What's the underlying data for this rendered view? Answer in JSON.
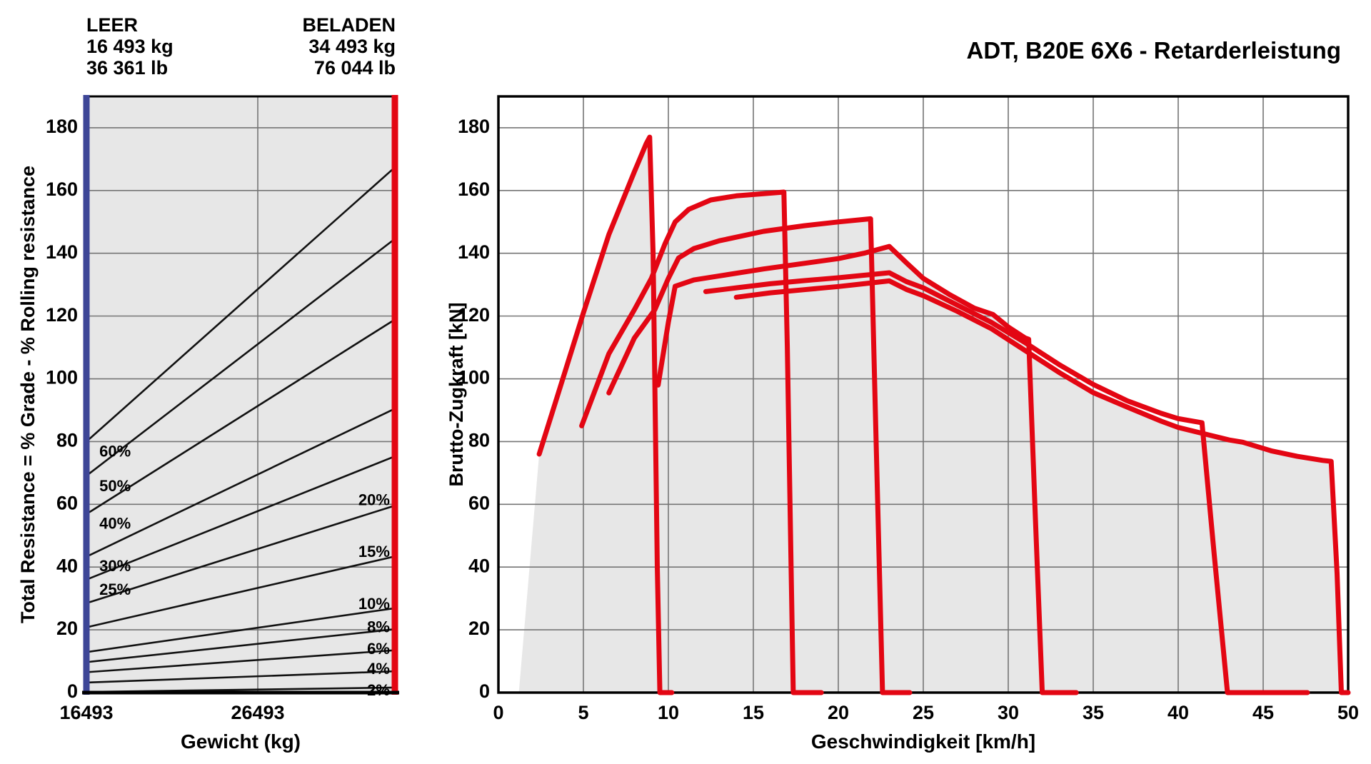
{
  "header_left": {
    "title": "LEER",
    "kg": "16 493 kg",
    "lb": "36 361 lb"
  },
  "header_right": {
    "title": "BELADEN",
    "kg": "34 493 kg",
    "lb": "76 044 lb"
  },
  "colors": {
    "red": "#e30613",
    "blue": "#3d4697",
    "fill": "#e7e7e7",
    "grid": "#757575",
    "line": "#111111"
  },
  "chart_data": [
    {
      "type": "line",
      "name": "grade-weight-nomograph",
      "xlabel": "Gewicht (kg)",
      "ylabel": "Total Resistance = % Grade - % Rolling resistance",
      "xlim": [
        16493,
        34493
      ],
      "ylim": [
        0,
        190
      ],
      "grid": true,
      "xticks": [
        {
          "value": 16493,
          "label": "16493"
        },
        {
          "value": 26493,
          "label": "26493"
        }
      ],
      "yticks": [
        {
          "value": 0,
          "label": "0"
        },
        {
          "value": 20,
          "label": "20"
        },
        {
          "value": 40,
          "label": "40"
        },
        {
          "value": 60,
          "label": "60"
        },
        {
          "value": 80,
          "label": "80"
        },
        {
          "value": 100,
          "label": "100"
        },
        {
          "value": 120,
          "label": "120"
        },
        {
          "value": 140,
          "label": "140"
        },
        {
          "value": 160,
          "label": "160"
        },
        {
          "value": 180,
          "label": "180"
        }
      ],
      "series": [
        {
          "name": "grade-60",
          "x": [
            16493,
            34493
          ],
          "y": [
            80.0,
            167.4
          ],
          "label": {
            "text": "60%",
            "x": 17250,
            "y": 76.5,
            "anchor": "start"
          }
        },
        {
          "name": "grade-50",
          "x": [
            16493,
            34493
          ],
          "y": [
            69.1,
            144.6
          ],
          "label": {
            "text": "50%",
            "x": 17250,
            "y": 65.5,
            "anchor": "start"
          }
        },
        {
          "name": "grade-40",
          "x": [
            16493,
            34493
          ],
          "y": [
            56.9,
            118.9
          ],
          "label": {
            "text": "40%",
            "x": 17250,
            "y": 53.5,
            "anchor": "start"
          }
        },
        {
          "name": "grade-30",
          "x": [
            16493,
            34493
          ],
          "y": [
            43.3,
            90.5
          ],
          "label": {
            "text": "30%",
            "x": 17250,
            "y": 40.0,
            "anchor": "start"
          }
        },
        {
          "name": "grade-25",
          "x": [
            16493,
            34493
          ],
          "y": [
            36.0,
            75.3
          ],
          "label": {
            "text": "25%",
            "x": 17250,
            "y": 32.5,
            "anchor": "start"
          }
        },
        {
          "name": "grade-20",
          "x": [
            16493,
            34493
          ],
          "y": [
            28.5,
            59.6
          ],
          "label": {
            "text": "20%",
            "x": 34200,
            "y": 61.0,
            "anchor": "end"
          }
        },
        {
          "name": "grade-15",
          "x": [
            16493,
            34493
          ],
          "y": [
            20.8,
            43.4
          ],
          "label": {
            "text": "15%",
            "x": 34200,
            "y": 44.5,
            "anchor": "end"
          }
        },
        {
          "name": "grade-10",
          "x": [
            16493,
            34493
          ],
          "y": [
            12.9,
            26.9
          ],
          "label": {
            "text": "10%",
            "x": 34200,
            "y": 28.0,
            "anchor": "end"
          }
        },
        {
          "name": "grade-8",
          "x": [
            16493,
            34493
          ],
          "y": [
            9.7,
            20.2
          ],
          "label": {
            "text": "8%",
            "x": 34200,
            "y": 20.5,
            "anchor": "end"
          }
        },
        {
          "name": "grade-6",
          "x": [
            16493,
            34493
          ],
          "y": [
            6.5,
            13.5
          ],
          "label": {
            "text": "6%",
            "x": 34200,
            "y": 13.6,
            "anchor": "end"
          }
        },
        {
          "name": "grade-4",
          "x": [
            16493,
            34493
          ],
          "y": [
            3.2,
            6.8
          ],
          "label": {
            "text": "4%",
            "x": 34200,
            "y": 7.2,
            "anchor": "end"
          }
        },
        {
          "name": "grade-2",
          "x": [
            16493,
            34493
          ],
          "y": [
            0.2,
            1.6
          ],
          "label": {
            "text": "2%",
            "x": 34200,
            "y": 0.4,
            "anchor": "end"
          }
        }
      ]
    },
    {
      "type": "line",
      "name": "retarder-performance",
      "title": "ADT, B20E 6X6 - Retarderleistung",
      "xlabel": "Geschwindigkeit [km/h]",
      "ylabel": "Brutto-Zugkraft [kN]",
      "xlim": [
        0,
        50
      ],
      "ylim": [
        0,
        190
      ],
      "grid": true,
      "xticks": [
        {
          "value": 0,
          "label": "0"
        },
        {
          "value": 5,
          "label": "5"
        },
        {
          "value": 10,
          "label": "10"
        },
        {
          "value": 15,
          "label": "15"
        },
        {
          "value": 20,
          "label": "20"
        },
        {
          "value": 25,
          "label": "25"
        },
        {
          "value": 30,
          "label": "30"
        },
        {
          "value": 35,
          "label": "35"
        },
        {
          "value": 40,
          "label": "40"
        },
        {
          "value": 45,
          "label": "45"
        },
        {
          "value": 50,
          "label": "50"
        }
      ],
      "yticks": [
        {
          "value": 0,
          "label": "0"
        },
        {
          "value": 20,
          "label": "20"
        },
        {
          "value": 40,
          "label": "40"
        },
        {
          "value": 60,
          "label": "60"
        },
        {
          "value": 80,
          "label": "80"
        },
        {
          "value": 100,
          "label": "100"
        },
        {
          "value": 120,
          "label": "120"
        },
        {
          "value": 140,
          "label": "140"
        },
        {
          "value": 160,
          "label": "160"
        },
        {
          "value": 180,
          "label": "180"
        }
      ],
      "series": [
        {
          "name": "gear-1",
          "points": [
            [
              2.4,
              76
            ],
            [
              3.5,
              95
            ],
            [
              5,
              121
            ],
            [
              6.5,
              146
            ],
            [
              8,
              166
            ],
            [
              8.7,
              175
            ],
            [
              8.9,
              177
            ],
            [
              9.1,
              140
            ],
            [
              9.35,
              40
            ],
            [
              9.5,
              0
            ],
            [
              10.2,
              0
            ]
          ]
        },
        {
          "name": "gear-2",
          "points": [
            [
              4.9,
              85
            ],
            [
              6.5,
              108
            ],
            [
              8,
              122
            ],
            [
              9,
              132
            ],
            [
              9.8,
              143
            ],
            [
              10.4,
              150
            ],
            [
              11.2,
              154
            ],
            [
              12.5,
              157
            ],
            [
              14,
              158.3
            ],
            [
              16.8,
              159.5
            ],
            [
              17.0,
              110
            ],
            [
              17.35,
              0
            ],
            [
              19.0,
              0
            ]
          ]
        },
        {
          "name": "gear-3",
          "points": [
            [
              6.5,
              95.5
            ],
            [
              8,
              113
            ],
            [
              9.2,
              122
            ],
            [
              10,
              132
            ],
            [
              10.6,
              138.5
            ],
            [
              11.5,
              141.5
            ],
            [
              13,
              144
            ],
            [
              15.6,
              147
            ],
            [
              18,
              148.8
            ],
            [
              20,
              150
            ],
            [
              21.9,
              151
            ],
            [
              22.2,
              85
            ],
            [
              22.6,
              0
            ],
            [
              24.2,
              0
            ]
          ]
        },
        {
          "name": "gear-4",
          "points": [
            [
              9.4,
              98
            ],
            [
              10,
              118
            ],
            [
              10.4,
              129.5
            ],
            [
              11.5,
              131.5
            ],
            [
              13,
              132.8
            ],
            [
              15.6,
              135
            ],
            [
              18,
              136.8
            ],
            [
              20,
              138.3
            ],
            [
              21.5,
              140
            ],
            [
              23,
              142.2
            ],
            [
              24,
              137
            ],
            [
              25,
              132
            ],
            [
              26.5,
              127
            ],
            [
              28,
              122.5
            ],
            [
              29.1,
              120.5
            ],
            [
              30,
              116.5
            ],
            [
              31,
              113
            ],
            [
              31.2,
              112.6
            ],
            [
              31.6,
              55
            ],
            [
              32,
              0
            ],
            [
              34,
              0
            ]
          ]
        },
        {
          "name": "gear-5",
          "points": [
            [
              12.2,
              127.8
            ],
            [
              14,
              129
            ],
            [
              16,
              130.3
            ],
            [
              18,
              131.3
            ],
            [
              20,
              132.2
            ],
            [
              21.5,
              133
            ],
            [
              23,
              133.8
            ],
            [
              24,
              131
            ],
            [
              25,
              129
            ],
            [
              27,
              123.5
            ],
            [
              29,
              118
            ],
            [
              31,
              111.5
            ],
            [
              33,
              104.5
            ],
            [
              35,
              98.2
            ],
            [
              37,
              93
            ],
            [
              39,
              89
            ],
            [
              40,
              87.3
            ],
            [
              41.4,
              86
            ],
            [
              42.1,
              45
            ],
            [
              42.9,
              0
            ],
            [
              47.6,
              0
            ]
          ]
        },
        {
          "name": "gear-6",
          "points": [
            [
              14,
              126
            ],
            [
              16,
              127.4
            ],
            [
              18,
              128.4
            ],
            [
              20,
              129.4
            ],
            [
              21.5,
              130.3
            ],
            [
              23,
              131.2
            ],
            [
              24,
              128.5
            ],
            [
              25,
              126.5
            ],
            [
              27,
              121.5
            ],
            [
              29,
              116
            ],
            [
              31,
              109
            ],
            [
              33,
              102
            ],
            [
              35,
              95.6
            ],
            [
              37,
              91
            ],
            [
              39,
              86.5
            ],
            [
              40,
              84.5
            ],
            [
              41.5,
              82.5
            ],
            [
              43,
              80.5
            ],
            [
              43.8,
              79.8
            ],
            [
              45.5,
              77
            ],
            [
              47,
              75.3
            ],
            [
              48.5,
              74
            ],
            [
              49,
              73.7
            ],
            [
              49.35,
              38
            ],
            [
              49.6,
              0
            ],
            [
              50,
              0
            ]
          ]
        }
      ],
      "envelope": [
        [
          1.2,
          0
        ],
        [
          2.4,
          76
        ],
        [
          3.5,
          95
        ],
        [
          5,
          121
        ],
        [
          6.5,
          146
        ],
        [
          8,
          166
        ],
        [
          8.7,
          175
        ],
        [
          8.9,
          177
        ],
        [
          9.2,
          136
        ],
        [
          9.8,
          143
        ],
        [
          10.4,
          150
        ],
        [
          11.2,
          154
        ],
        [
          12.5,
          157
        ],
        [
          14,
          158.3
        ],
        [
          16.8,
          159.5
        ],
        [
          16.9,
          147.4
        ],
        [
          18,
          148.8
        ],
        [
          20,
          150
        ],
        [
          21.9,
          151
        ],
        [
          22.05,
          141
        ],
        [
          23,
          142.2
        ],
        [
          24,
          137
        ],
        [
          25,
          132
        ],
        [
          26.5,
          127
        ],
        [
          28,
          122.5
        ],
        [
          29.1,
          120.5
        ],
        [
          30,
          116.5
        ],
        [
          31,
          113
        ],
        [
          31.4,
          107.5
        ],
        [
          33,
          102
        ],
        [
          35,
          95.6
        ],
        [
          37,
          91
        ],
        [
          39,
          86.5
        ],
        [
          40,
          84.5
        ],
        [
          41.5,
          82.5
        ],
        [
          43,
          80.5
        ],
        [
          43.8,
          79.8
        ],
        [
          45.5,
          77
        ],
        [
          47,
          75.3
        ],
        [
          48.5,
          74
        ],
        [
          49,
          73.7
        ],
        [
          49.6,
          0
        ]
      ]
    }
  ]
}
